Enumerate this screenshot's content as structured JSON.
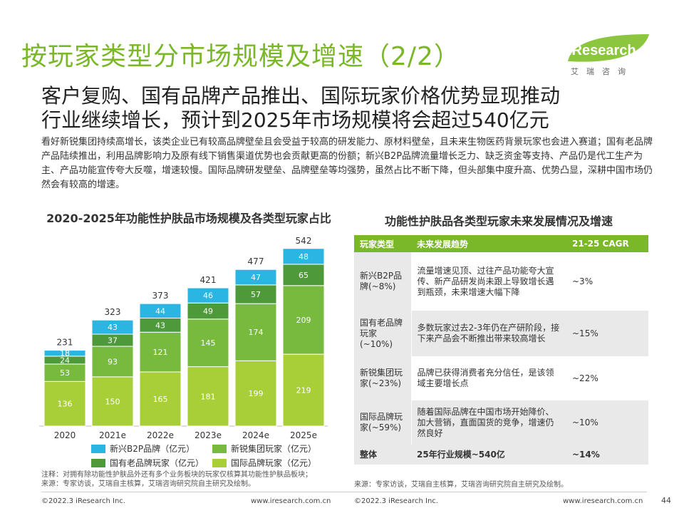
{
  "header": {
    "title": "按玩家类型分市场规模及增速（2/2）",
    "logo_text": "iResearch",
    "logo_sub": "艾瑞咨询"
  },
  "subtitle": {
    "line1": "客户复购、国有品牌产品推出、国际玩家价格优势显现推动",
    "line2": "行业继续增长，预计到2025年市场规模将会超过540亿元"
  },
  "body": {
    "paragraph": "看好新锐集团持续高增长，该类企业已有较高品牌壁垒且会受益于较高的研发能力、原材料壁垒，且未来生物医药背景玩家也会进入赛道；国有老品牌产品陆续推出，利用品牌影响力及原有线下销售渠道优势也会贡献更高的份额；新兴B2P品牌流量增长乏力、缺乏资金等支持、产品仍是代工生产为主、产品功能宣传夸大反噬，增速较慢。国际品牌研发壁垒、品牌壁垒等均强势，虽然占比不断下降，但头部集中度升高、优势凸显，深耕中国市场仍然会有较高的增速。"
  },
  "chart_data": {
    "type": "bar",
    "stacked": true,
    "title": "2020-2025年功能性护肤品市场规模及各类型玩家占比",
    "categories": [
      "2020",
      "2021e",
      "2022e",
      "2023e",
      "2024e",
      "2025e"
    ],
    "totals": [
      "231",
      "323",
      "373",
      "421",
      "477",
      "542"
    ],
    "series": [
      {
        "name": "国际品牌玩家（亿元）",
        "color": "#a8cf38",
        "values": [
          136,
          150,
          165,
          181,
          199,
          219
        ]
      },
      {
        "name": "新锐集团玩家（亿元）",
        "color": "#77ba3e",
        "values": [
          53,
          93,
          121,
          145,
          174,
          209
        ]
      },
      {
        "name": "国有老品牌玩家（亿元）",
        "color": "#4e9a3a",
        "values": [
          24,
          37,
          43,
          49,
          57,
          65
        ]
      },
      {
        "name": "新兴B2P品牌（亿元）",
        "color": "#2bb5e3",
        "values": [
          18,
          43,
          44,
          46,
          47,
          48
        ]
      }
    ],
    "ylim": [
      0,
      560
    ],
    "legend_position": "bottom"
  },
  "note": {
    "line1": "注释：对拥有除功能性护肤品外还有多个业务板块的玩家仅核算其功能性护肤品板块；",
    "line2": "来源：专家访谈，艾瑞自主核算，艾瑞咨询研究院自主研究及绘制。"
  },
  "table": {
    "title": "功能性护肤品各类型玩家未来发展情况及增速",
    "headers": [
      "玩家类型",
      "未来发展趋势",
      "21-25 CAGR"
    ],
    "rows": [
      {
        "type": "新兴B2P品牌(~8%)",
        "trend": "流量增速见顶、过往产品功能夸大宣传、新产品研发尚未跟上导致增长遇到瓶颈，未来增速大幅下降",
        "cagr": "~3%"
      },
      {
        "type": "国有老品牌玩家(~10%)",
        "trend": "多数玩家过去2-3年仍在产研阶段，接下来产品会不断推出带来较高增长",
        "cagr": "~15%"
      },
      {
        "type": "新锐集团玩家(~23%)",
        "trend": "品牌已获得消费者充分信任，是该领域主要增长点",
        "cagr": "~22%"
      },
      {
        "type": "国际品牌玩家(~59%)",
        "trend": "随着国际品牌在中国市场开始降价、加大营销，直面国货的竞争，增速仍然良好",
        "cagr": "~10%"
      }
    ],
    "total": {
      "type": "整体",
      "trend": "25年行业规模~540亿",
      "cagr": "~14%"
    }
  },
  "source2": "来源：专家访谈，艾瑞自主核算，艾瑞咨询研究院自主研究及绘制。",
  "footer": {
    "left1": "©2022.3 iResearch Inc.",
    "mid1": "www.iresearch.com.cn",
    "left2": "©2022.3 iResearch Inc.",
    "mid2": "www.iresearch.com.cn",
    "page": "44"
  }
}
